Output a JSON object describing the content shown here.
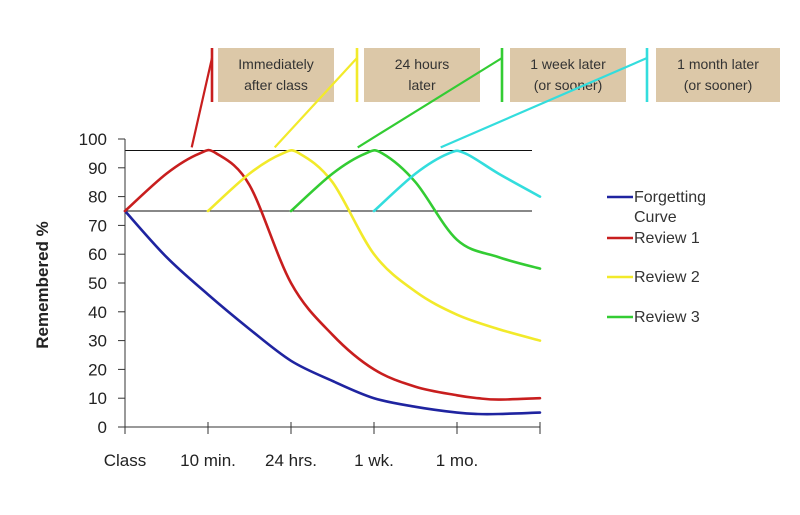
{
  "chart_data": {
    "type": "line",
    "categories": [
      "Class",
      "10 min.",
      "24 hrs.",
      "1 wk.",
      "1 mo."
    ],
    "ylabel": "Remembered %",
    "ylim": [
      0,
      100
    ],
    "yticks": [
      0,
      10,
      20,
      30,
      40,
      50,
      60,
      70,
      80,
      90,
      100
    ],
    "reference_lines": [
      96,
      75
    ],
    "legend_position": "right",
    "series": [
      {
        "name": "Forgetting Curve",
        "color": "#1f24a0",
        "x": [
          0,
          0.5,
          1,
          1.5,
          2,
          2.5,
          3,
          3.5,
          4,
          4.25,
          4.5,
          5
        ],
        "y": [
          75,
          59,
          46,
          34,
          23,
          16,
          10,
          7,
          5,
          4.5,
          4.5,
          5
        ]
      },
      {
        "name": "Review 1",
        "color": "#c81e1e",
        "x": [
          0,
          0.5,
          0.9,
          1.1,
          1.5,
          2,
          2.5,
          3,
          3.5,
          4,
          4.25,
          4.5,
          5
        ],
        "y": [
          75,
          88,
          95,
          95,
          84,
          50,
          32,
          20,
          14,
          11,
          10,
          9.5,
          10
        ]
      },
      {
        "name": "Review 2",
        "color": "#f2ea2a",
        "x": [
          1,
          1.5,
          1.9,
          2.1,
          2.5,
          3,
          3.5,
          4,
          4.5,
          5
        ],
        "y": [
          75,
          88,
          95,
          95,
          85,
          60,
          47,
          39,
          34,
          30
        ]
      },
      {
        "name": "Review 3",
        "color": "#33cc33",
        "x": [
          2,
          2.5,
          2.9,
          3.1,
          3.5,
          4,
          4.5,
          5
        ],
        "y": [
          75,
          88,
          95,
          95,
          85,
          65,
          59,
          55
        ]
      },
      {
        "name": "",
        "color": "#33dddd",
        "x": [
          3,
          3.5,
          3.9,
          4.1,
          4.5,
          5
        ],
        "y": [
          75,
          88,
          95,
          95,
          88,
          80
        ]
      }
    ],
    "annotations": [
      {
        "line1": "Immediately",
        "line2": "after class",
        "color": "#c81e1e",
        "series": 1
      },
      {
        "line1": "24 hours",
        "line2": "later",
        "color": "#f2ea2a",
        "series": 2
      },
      {
        "line1": "1 week later",
        "line2": "(or sooner)",
        "color": "#33cc33",
        "series": 3
      },
      {
        "line1": "1 month later",
        "line2": "(or sooner)",
        "color": "#33dddd",
        "series": 4
      }
    ],
    "legend": [
      {
        "line1": "Forgetting",
        "line2": "Curve",
        "color": "#1f24a0"
      },
      {
        "line1": "Review 1",
        "line2": "",
        "color": "#c81e1e"
      },
      {
        "line1": "Review 2",
        "line2": "",
        "color": "#f2ea2a"
      },
      {
        "line1": "Review 3",
        "line2": "",
        "color": "#33cc33"
      }
    ],
    "annotation_box_color": "#dcc8a8",
    "axis_color": "#333333"
  }
}
